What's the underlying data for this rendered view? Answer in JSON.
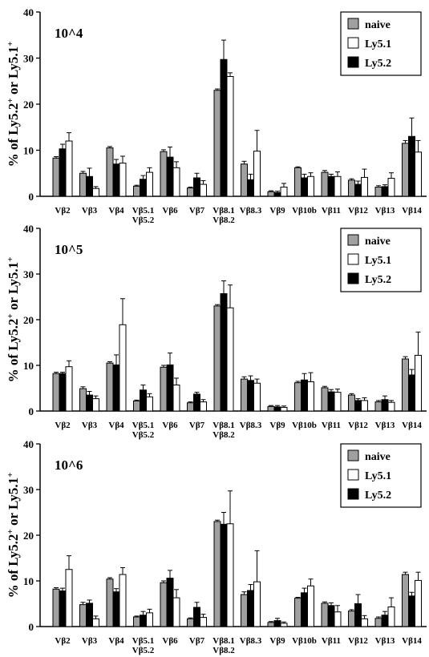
{
  "chart_data": [
    {
      "type": "bar",
      "title": "10^4",
      "ylabel_parts": [
        "% of Ly5.2",
        "+",
        " or Ly5.1",
        "+"
      ],
      "ylim": [
        0,
        40
      ],
      "yticks": [
        "0",
        "10",
        "20",
        "30",
        "40"
      ],
      "legend_position": "top-right",
      "categories": [
        [
          "Vβ2"
        ],
        [
          "Vβ3"
        ],
        [
          "Vβ4"
        ],
        [
          "Vβ5.1",
          "Vβ5.2"
        ],
        [
          "Vβ6"
        ],
        [
          "Vβ7"
        ],
        [
          "Vβ8.1",
          "Vβ8.2"
        ],
        [
          "Vβ8.3"
        ],
        [
          "Vβ9"
        ],
        [
          "Vβ10b"
        ],
        [
          "Vβ11"
        ],
        [
          "Vβ12"
        ],
        [
          "Vβ13"
        ],
        [
          "Vβ14"
        ]
      ],
      "series": [
        {
          "name": "naive",
          "color": "#a0a0a0",
          "values": [
            8.3,
            5.0,
            10.5,
            2.2,
            9.7,
            1.8,
            23.0,
            7.0,
            1.0,
            6.2,
            5.2,
            3.5,
            2.0,
            11.5
          ],
          "errors": [
            0.3,
            0.4,
            0.3,
            0.2,
            0.4,
            0.2,
            0.3,
            0.6,
            0.2,
            0.2,
            0.4,
            0.3,
            0.3,
            0.6
          ]
        },
        {
          "name": "Ly5.1",
          "color": "#ffffff",
          "values": [
            12.0,
            1.7,
            7.2,
            5.2,
            6.2,
            2.6,
            26.0,
            9.8,
            2.0,
            4.3,
            4.3,
            4.1,
            3.9,
            9.6
          ],
          "errors": [
            1.8,
            0.4,
            1.5,
            1.0,
            1.3,
            0.8,
            0.8,
            4.5,
            0.8,
            0.8,
            1.0,
            1.8,
            1.2,
            2.5
          ]
        },
        {
          "name": "Ly5.2",
          "color": "#000000",
          "values": [
            10.3,
            4.3,
            7.0,
            3.7,
            8.5,
            4.0,
            29.7,
            3.6,
            0.8,
            4.0,
            4.3,
            2.6,
            2.1,
            13.0
          ],
          "errors": [
            1.0,
            1.8,
            1.0,
            0.8,
            2.2,
            1.0,
            4.2,
            1.2,
            0.3,
            0.8,
            0.5,
            0.7,
            0.4,
            4.0
          ]
        }
      ]
    },
    {
      "type": "bar",
      "title": "10^5",
      "ylabel_parts": [
        "% of Ly5.2",
        "+",
        " or Ly5.1",
        "+"
      ],
      "ylim": [
        0,
        40
      ],
      "yticks": [
        "0",
        "10",
        "20",
        "30",
        "40"
      ],
      "legend_position": "top-right",
      "categories": [
        [
          "Vβ2"
        ],
        [
          "Vβ3"
        ],
        [
          "Vβ4"
        ],
        [
          "Vβ5.1",
          "Vβ5.2"
        ],
        [
          "Vβ6"
        ],
        [
          "Vβ7"
        ],
        [
          "Vβ8.1",
          "Vβ8.2"
        ],
        [
          "Vβ8.3"
        ],
        [
          "Vβ9"
        ],
        [
          "Vβ10b"
        ],
        [
          "Vβ11"
        ],
        [
          "Vβ12"
        ],
        [
          "Vβ13"
        ],
        [
          "Vβ14"
        ]
      ],
      "series": [
        {
          "name": "naive",
          "color": "#a0a0a0",
          "values": [
            8.2,
            4.9,
            10.5,
            2.2,
            9.6,
            1.8,
            23.0,
            7.0,
            1.0,
            6.2,
            5.1,
            3.5,
            2.0,
            11.4
          ],
          "errors": [
            0.3,
            0.4,
            0.3,
            0.2,
            0.4,
            0.2,
            0.3,
            0.5,
            0.2,
            0.3,
            0.3,
            0.3,
            0.3,
            0.5
          ]
        },
        {
          "name": "Ly5.1",
          "color": "#ffffff",
          "values": [
            9.7,
            2.7,
            18.9,
            3.1,
            5.7,
            2.0,
            22.6,
            6.1,
            0.8,
            6.4,
            4.1,
            2.3,
            1.9,
            12.2
          ],
          "errors": [
            1.3,
            0.6,
            5.7,
            0.7,
            1.5,
            0.5,
            5.0,
            0.9,
            0.3,
            2.0,
            0.7,
            0.6,
            0.4,
            5.1
          ]
        },
        {
          "name": "Ly5.2",
          "color": "#000000",
          "values": [
            8.2,
            3.5,
            10.1,
            4.6,
            10.1,
            3.7,
            25.7,
            6.7,
            0.9,
            6.8,
            4.2,
            2.3,
            2.5,
            7.9
          ],
          "errors": [
            0.3,
            0.8,
            2.2,
            1.1,
            2.6,
            0.4,
            2.8,
            1.0,
            0.3,
            1.4,
            0.5,
            0.4,
            0.8,
            1.2
          ]
        }
      ]
    },
    {
      "type": "bar",
      "title": "10^6",
      "ylabel_parts": [
        "% of Ly5.2",
        "+",
        " or Ly5.1",
        "+"
      ],
      "ylim": [
        0,
        40
      ],
      "yticks": [
        "0",
        "10",
        "20",
        "30",
        "40"
      ],
      "legend_position": "top-right",
      "categories": [
        [
          "Vβ2"
        ],
        [
          "Vβ3"
        ],
        [
          "Vβ4"
        ],
        [
          "Vβ5.1",
          "Vβ5.2"
        ],
        [
          "Vβ6"
        ],
        [
          "Vβ7"
        ],
        [
          "Vβ8.1",
          "Vβ8.2"
        ],
        [
          "Vβ8.3"
        ],
        [
          "Vβ9"
        ],
        [
          "Vβ10b"
        ],
        [
          "Vβ11"
        ],
        [
          "Vβ12"
        ],
        [
          "Vβ13"
        ],
        [
          "Vβ14"
        ]
      ],
      "series": [
        {
          "name": "naive",
          "color": "#a0a0a0",
          "values": [
            8.2,
            4.8,
            10.4,
            2.1,
            9.6,
            1.7,
            23.0,
            7.0,
            0.9,
            6.2,
            5.1,
            3.4,
            1.8,
            11.4
          ],
          "errors": [
            0.3,
            0.5,
            0.3,
            0.2,
            0.4,
            0.2,
            0.3,
            0.6,
            0.2,
            0.2,
            0.3,
            0.3,
            0.3,
            0.5
          ]
        },
        {
          "name": "Ly5.1",
          "color": "#ffffff",
          "values": [
            12.5,
            1.7,
            11.4,
            3.0,
            6.3,
            2.0,
            22.5,
            9.8,
            0.7,
            8.9,
            3.2,
            1.7,
            4.3,
            10.1
          ],
          "errors": [
            3.0,
            0.6,
            1.5,
            0.8,
            1.8,
            0.7,
            7.2,
            6.8,
            0.3,
            1.5,
            1.4,
            0.7,
            2.0,
            1.8
          ]
        },
        {
          "name": "Ly5.2",
          "color": "#000000",
          "values": [
            7.8,
            5.1,
            7.6,
            2.5,
            10.6,
            4.2,
            22.4,
            7.9,
            1.3,
            7.4,
            4.6,
            5.0,
            2.5,
            6.7
          ],
          "errors": [
            0.6,
            0.7,
            0.7,
            0.8,
            1.7,
            1.1,
            2.6,
            1.3,
            0.5,
            1.0,
            0.6,
            2.0,
            0.8,
            0.8
          ]
        }
      ]
    }
  ]
}
